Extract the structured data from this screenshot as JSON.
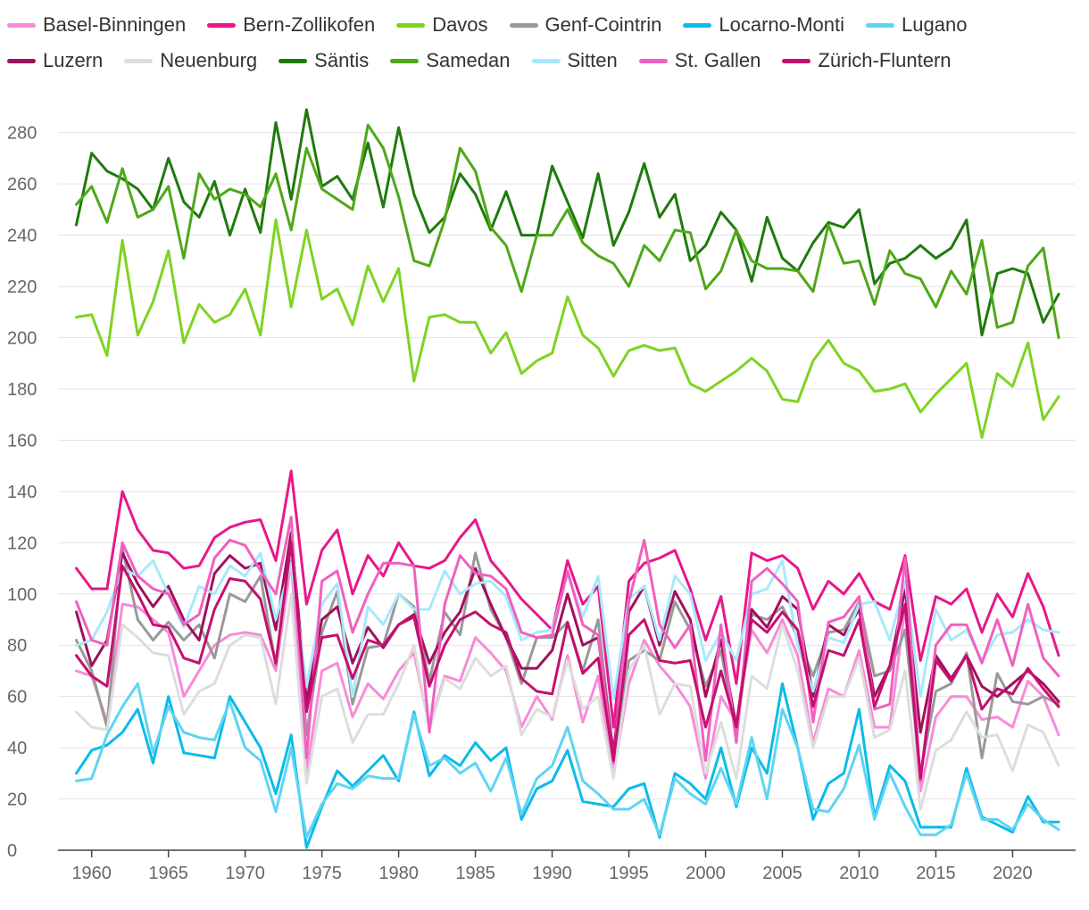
{
  "chart_data": {
    "type": "line",
    "title": "",
    "xlabel": "",
    "ylabel": "",
    "xlim": [
      1959,
      2023
    ],
    "ylim": [
      0,
      290
    ],
    "yticks": [
      0,
      20,
      40,
      60,
      80,
      100,
      120,
      140,
      160,
      180,
      200,
      220,
      240,
      260,
      280
    ],
    "xticks": [
      1960,
      1965,
      1970,
      1975,
      1980,
      1985,
      1990,
      1995,
      2000,
      2005,
      2010,
      2015,
      2020
    ],
    "grid": true,
    "legend_position": "top",
    "x": [
      1959,
      1960,
      1961,
      1962,
      1963,
      1964,
      1965,
      1966,
      1967,
      1968,
      1969,
      1970,
      1971,
      1972,
      1973,
      1974,
      1975,
      1976,
      1977,
      1978,
      1979,
      1980,
      1981,
      1982,
      1983,
      1984,
      1985,
      1986,
      1987,
      1988,
      1989,
      1990,
      1991,
      1992,
      1993,
      1994,
      1995,
      1996,
      1997,
      1998,
      1999,
      2000,
      2001,
      2002,
      2003,
      2004,
      2005,
      2006,
      2007,
      2008,
      2009,
      2010,
      2011,
      2012,
      2013,
      2014,
      2015,
      2016,
      2017,
      2018,
      2019,
      2020,
      2021,
      2022,
      2023
    ],
    "series": [
      {
        "name": "Basel-Binningen",
        "color": "#f78bd8",
        "values": [
          70,
          68,
          50,
          96,
          95,
          90,
          85,
          60,
          70,
          80,
          84,
          85,
          84,
          70,
          113,
          30,
          70,
          73,
          52,
          65,
          59,
          70,
          77,
          48,
          68,
          66,
          83,
          77,
          70,
          48,
          60,
          51,
          76,
          50,
          68,
          30,
          65,
          82,
          72,
          65,
          56,
          28,
          60,
          50,
          86,
          77,
          90,
          76,
          42,
          63,
          60,
          78,
          48,
          48,
          95,
          23,
          52,
          60,
          60,
          51,
          52,
          48,
          66,
          60,
          45
        ]
      },
      {
        "name": "Bern-Zollikofen",
        "color": "#e8178a",
        "values": [
          110,
          102,
          102,
          140,
          125,
          117,
          116,
          110,
          111,
          122,
          126,
          128,
          129,
          113,
          148,
          96,
          117,
          125,
          100,
          115,
          107,
          120,
          111,
          110,
          113,
          122,
          129,
          113,
          106,
          98,
          92,
          86,
          113,
          96,
          103,
          48,
          105,
          112,
          114,
          117,
          102,
          82,
          99,
          65,
          116,
          113,
          115,
          110,
          94,
          105,
          100,
          108,
          97,
          94,
          115,
          74,
          99,
          96,
          102,
          85,
          100,
          91,
          108,
          95,
          76
        ]
      },
      {
        "name": "Davos",
        "color": "#7ed321",
        "values": [
          208,
          209,
          193,
          238,
          201,
          214,
          234,
          198,
          213,
          206,
          209,
          219,
          201,
          246,
          212,
          242,
          215,
          219,
          205,
          228,
          214,
          227,
          183,
          208,
          209,
          206,
          206,
          194,
          202,
          186,
          191,
          194,
          216,
          201,
          196,
          185,
          195,
          197,
          195,
          196,
          182,
          179,
          183,
          187,
          192,
          187,
          176,
          175,
          191,
          199,
          190,
          187,
          179,
          180,
          182,
          171,
          178,
          184,
          190,
          161,
          186,
          181,
          198,
          168,
          177
        ]
      },
      {
        "name": "Genf-Cointrin",
        "color": "#999999",
        "values": [
          82,
          70,
          48,
          118,
          90,
          82,
          89,
          82,
          88,
          75,
          100,
          97,
          107,
          72,
          123,
          45,
          85,
          101,
          57,
          79,
          80,
          100,
          95,
          66,
          93,
          84,
          116,
          94,
          83,
          65,
          83,
          83,
          89,
          70,
          90,
          36,
          74,
          78,
          74,
          97,
          86,
          64,
          78,
          45,
          92,
          90,
          95,
          83,
          68,
          85,
          86,
          97,
          68,
          70,
          86,
          30,
          62,
          65,
          77,
          36,
          69,
          58,
          57,
          60,
          57
        ]
      },
      {
        "name": "Locarno-Monti",
        "color": "#0bbbe8",
        "values": [
          30,
          39,
          41,
          46,
          55,
          34,
          60,
          38,
          37,
          36,
          60,
          50,
          40,
          22,
          45,
          1,
          17,
          31,
          25,
          31,
          37,
          27,
          54,
          29,
          37,
          33,
          42,
          35,
          40,
          12,
          24,
          27,
          39,
          19,
          18,
          17,
          24,
          26,
          5,
          30,
          26,
          20,
          40,
          17,
          40,
          30,
          65,
          40,
          12,
          26,
          30,
          55,
          13,
          33,
          27,
          9,
          9,
          9,
          32,
          13,
          10,
          7,
          21,
          11,
          11
        ]
      },
      {
        "name": "Lugano",
        "color": "#5fd4f2",
        "values": [
          27,
          28,
          45,
          56,
          65,
          38,
          56,
          46,
          44,
          43,
          58,
          40,
          35,
          15,
          40,
          5,
          18,
          26,
          24,
          29,
          28,
          28,
          53,
          33,
          36,
          30,
          34,
          23,
          36,
          14,
          28,
          33,
          48,
          27,
          22,
          16,
          16,
          20,
          6,
          28,
          22,
          18,
          32,
          18,
          44,
          20,
          55,
          40,
          16,
          15,
          24,
          41,
          12,
          30,
          17,
          6,
          6,
          10,
          30,
          12,
          12,
          8,
          18,
          12,
          8
        ]
      },
      {
        "name": "Luzern",
        "color": "#a0105c",
        "values": [
          93,
          72,
          82,
          116,
          104,
          95,
          103,
          90,
          82,
          108,
          115,
          110,
          112,
          86,
          124,
          58,
          90,
          95,
          73,
          87,
          79,
          88,
          92,
          73,
          85,
          93,
          110,
          96,
          83,
          71,
          71,
          78,
          100,
          80,
          83,
          38,
          93,
          103,
          80,
          101,
          90,
          60,
          82,
          48,
          94,
          87,
          99,
          94,
          60,
          88,
          84,
          94,
          60,
          72,
          102,
          46,
          76,
          67,
          76,
          64,
          60,
          65,
          70,
          65,
          58
        ]
      },
      {
        "name": "Neuenburg",
        "color": "#dddddd",
        "values": [
          54,
          48,
          47,
          88,
          83,
          77,
          76,
          53,
          62,
          65,
          80,
          84,
          83,
          57,
          100,
          26,
          60,
          63,
          42,
          53,
          53,
          65,
          80,
          47,
          67,
          63,
          75,
          68,
          72,
          45,
          55,
          52,
          74,
          55,
          60,
          28,
          70,
          80,
          53,
          65,
          64,
          30,
          50,
          28,
          68,
          63,
          88,
          70,
          40,
          60,
          60,
          75,
          44,
          47,
          70,
          16,
          39,
          43,
          54,
          44,
          45,
          31,
          49,
          46,
          33
        ]
      },
      {
        "name": "Säntis",
        "color": "#1f7a0d",
        "values": [
          244,
          272,
          265,
          262,
          258,
          250,
          270,
          253,
          247,
          261,
          240,
          258,
          241,
          284,
          254,
          289,
          259,
          263,
          254,
          276,
          251,
          282,
          256,
          241,
          247,
          264,
          256,
          242,
          257,
          240,
          240,
          267,
          253,
          239,
          264,
          236,
          249,
          268,
          247,
          256,
          230,
          236,
          249,
          242,
          222,
          247,
          231,
          226,
          237,
          245,
          243,
          250,
          221,
          229,
          231,
          236,
          231,
          235,
          246,
          201,
          225,
          227,
          225,
          206,
          217
        ]
      },
      {
        "name": "Samedan",
        "color": "#4fa81a",
        "values": [
          252,
          259,
          245,
          266,
          247,
          250,
          259,
          231,
          264,
          254,
          258,
          256,
          251,
          264,
          242,
          274,
          258,
          254,
          250,
          283,
          274,
          255,
          230,
          228,
          246,
          274,
          265,
          243,
          236,
          218,
          240,
          240,
          250,
          237,
          232,
          229,
          220,
          236,
          230,
          242,
          241,
          219,
          226,
          242,
          230,
          227,
          227,
          226,
          218,
          244,
          229,
          230,
          213,
          234,
          225,
          223,
          212,
          226,
          217,
          238,
          204,
          206,
          228,
          235,
          200
        ]
      },
      {
        "name": "Sitten",
        "color": "#a8e8fb",
        "values": [
          80,
          82,
          93,
          110,
          107,
          113,
          100,
          87,
          103,
          100,
          111,
          107,
          116,
          90,
          112,
          64,
          96,
          104,
          60,
          95,
          88,
          100,
          94,
          94,
          109,
          100,
          104,
          105,
          99,
          82,
          85,
          86,
          108,
          91,
          107,
          59,
          98,
          103,
          82,
          107,
          100,
          74,
          85,
          74,
          100,
          102,
          113,
          80,
          62,
          83,
          81,
          96,
          97,
          82,
          105,
          60,
          94,
          82,
          86,
          74,
          84,
          85,
          90,
          86,
          85
        ]
      },
      {
        "name": "St. Gallen",
        "color": "#f060c0",
        "values": [
          97,
          82,
          80,
          120,
          107,
          102,
          100,
          88,
          92,
          114,
          121,
          119,
          109,
          100,
          130,
          36,
          105,
          109,
          85,
          100,
          112,
          112,
          111,
          46,
          96,
          115,
          108,
          107,
          102,
          85,
          83,
          84,
          109,
          88,
          84,
          34,
          97,
          121,
          88,
          79,
          88,
          35,
          88,
          42,
          105,
          110,
          104,
          97,
          50,
          89,
          91,
          99,
          55,
          57,
          114,
          27,
          80,
          88,
          88,
          73,
          90,
          72,
          96,
          75,
          68
        ]
      },
      {
        "name": "Zürich-Fluntern",
        "color": "#c4106e",
        "values": [
          76,
          68,
          64,
          111,
          100,
          88,
          87,
          75,
          73,
          94,
          106,
          105,
          98,
          73,
          120,
          54,
          83,
          84,
          67,
          82,
          80,
          88,
          91,
          64,
          80,
          90,
          93,
          88,
          85,
          67,
          62,
          61,
          89,
          69,
          75,
          35,
          84,
          90,
          74,
          73,
          74,
          48,
          70,
          48,
          90,
          85,
          93,
          86,
          56,
          78,
          76,
          90,
          56,
          72,
          96,
          28,
          74,
          66,
          76,
          55,
          63,
          61,
          71,
          63,
          56
        ]
      }
    ]
  }
}
